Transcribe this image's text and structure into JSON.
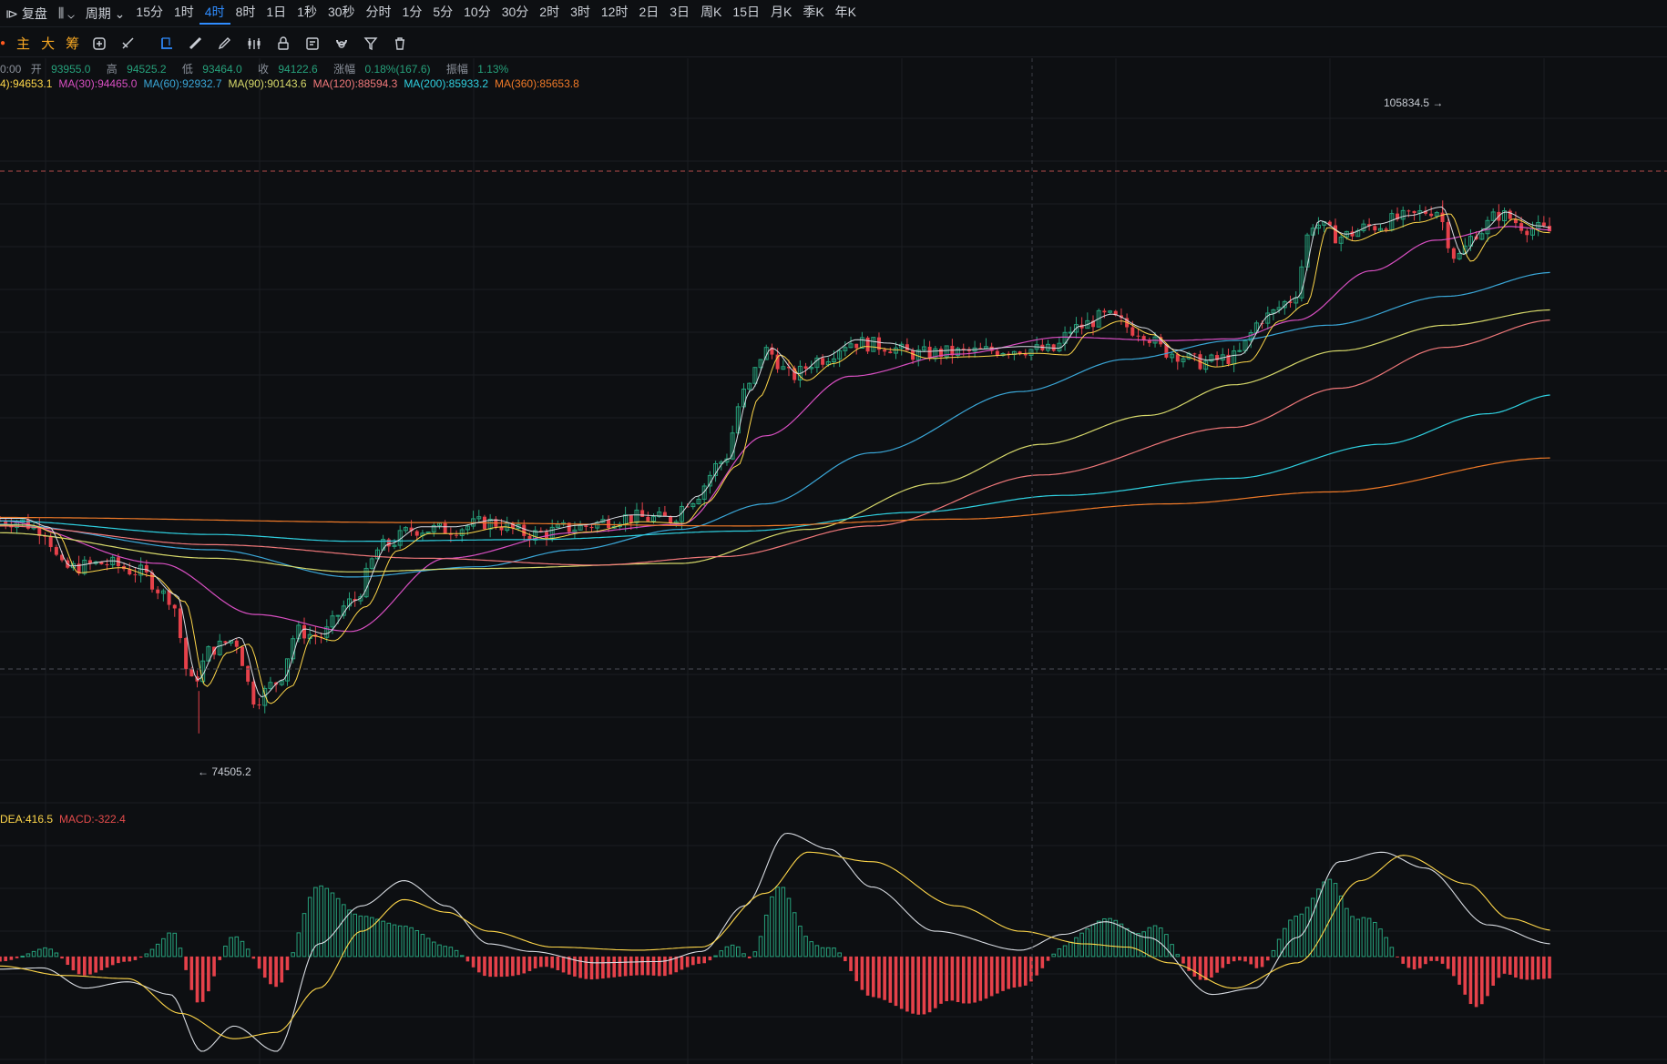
{
  "toolbar": {
    "left_label": "复盘",
    "period_label": "周期",
    "periods": [
      "15分",
      "1时",
      "4时",
      "8时",
      "1日",
      "1秒",
      "30秒",
      "分时",
      "1分",
      "5分",
      "10分",
      "30分",
      "2时",
      "3时",
      "12时",
      "2日",
      "3日",
      "周K",
      "15日",
      "月K",
      "季K",
      "年K"
    ],
    "active_period": "4时"
  },
  "drawbar": {
    "items": [
      "主",
      "大",
      "筹"
    ],
    "tools": [
      "toggle-icon",
      "indicator-icon",
      "cursor-icon",
      "ruler-icon",
      "pen-icon",
      "candles-icon",
      "lock-icon",
      "layout-icon",
      "magnet-icon",
      "filter-icon",
      "trash-icon"
    ]
  },
  "ohlc_line": {
    "time": "0:00",
    "open_label": "开",
    "open": "93955.0",
    "high_label": "高",
    "high": "94525.2",
    "low_label": "低",
    "low": "93464.0",
    "close_label": "收",
    "close": "94122.6",
    "change_label": "涨幅",
    "change": "0.18%(167.6)",
    "amp_label": "振幅",
    "amp": "1.13%"
  },
  "ma_line": [
    {
      "text": "4):94653.1",
      "color": "#ffd74a"
    },
    {
      "text": "MA(30):94465.0",
      "color": "#d84fc2"
    },
    {
      "text": "MA(60):92932.7",
      "color": "#3aa7d8"
    },
    {
      "text": "MA(90):90143.6",
      "color": "#d6d86a"
    },
    {
      "text": "MA(120):88594.3",
      "color": "#f0787a"
    },
    {
      "text": "MA(200):85933.2",
      "color": "#2fd0e0"
    },
    {
      "text": "MA(360):85653.8",
      "color": "#f07a28"
    }
  ],
  "macd_line": [
    {
      "text": "DEA:416.5",
      "color": "#ffd74a"
    },
    {
      "text": "MACD:-322.4",
      "color": "#e34b4b"
    }
  ],
  "annotations": {
    "high": "105834.5",
    "low": "74505.2"
  },
  "colors": {
    "up": "#26a17b",
    "down": "#e5414a",
    "bg": "#0d0f12",
    "grid": "#1a1d22"
  },
  "chart_data": {
    "type": "candlestick",
    "title": "",
    "interval": "4时",
    "ylim": [
      70000,
      112000
    ],
    "price_anchors": [
      [
        15,
        87000
      ],
      [
        40,
        86500
      ],
      [
        60,
        84200
      ],
      [
        100,
        84500
      ],
      [
        130,
        84000
      ],
      [
        160,
        82500
      ],
      [
        180,
        77500
      ],
      [
        200,
        79500
      ],
      [
        220,
        80000
      ],
      [
        240,
        76500
      ],
      [
        260,
        77500
      ],
      [
        280,
        80500
      ],
      [
        300,
        80200
      ],
      [
        330,
        82200
      ],
      [
        360,
        85500
      ],
      [
        390,
        86500
      ],
      [
        420,
        86500
      ],
      [
        460,
        86900
      ],
      [
        500,
        86200
      ],
      [
        540,
        86600
      ],
      [
        590,
        87200
      ],
      [
        630,
        87100
      ],
      [
        650,
        88300
      ],
      [
        680,
        90500
      ],
      [
        700,
        94500
      ],
      [
        720,
        97000
      ],
      [
        745,
        95500
      ],
      [
        770,
        96500
      ],
      [
        800,
        97500
      ],
      [
        830,
        97300
      ],
      [
        860,
        96800
      ],
      [
        900,
        96900
      ],
      [
        960,
        97100
      ],
      [
        990,
        97000
      ],
      [
        1010,
        98300
      ],
      [
        1040,
        99000
      ],
      [
        1070,
        98200
      ],
      [
        1100,
        96900
      ],
      [
        1130,
        96300
      ],
      [
        1160,
        96600
      ],
      [
        1190,
        99000
      ],
      [
        1215,
        100000
      ],
      [
        1235,
        104500
      ],
      [
        1260,
        103700
      ],
      [
        1290,
        104300
      ],
      [
        1320,
        104800
      ],
      [
        1350,
        105300
      ],
      [
        1370,
        102500
      ],
      [
        1390,
        104000
      ],
      [
        1410,
        105000
      ],
      [
        1440,
        104200
      ],
      [
        1460,
        104000
      ]
    ],
    "ma_series": [
      {
        "name": "MA(30)",
        "color": "#d84fc2",
        "points": [
          [
            0,
            87000
          ],
          [
            150,
            84500
          ],
          [
            240,
            81500
          ],
          [
            330,
            80500
          ],
          [
            420,
            84800
          ],
          [
            540,
            86300
          ],
          [
            640,
            86800
          ],
          [
            720,
            92000
          ],
          [
            800,
            95500
          ],
          [
            900,
            96800
          ],
          [
            1000,
            97800
          ],
          [
            1100,
            97600
          ],
          [
            1160,
            97700
          ],
          [
            1220,
            98800
          ],
          [
            1290,
            101700
          ],
          [
            1350,
            103500
          ],
          [
            1420,
            104300
          ],
          [
            1460,
            104100
          ]
        ]
      },
      {
        "name": "MA(60)",
        "color": "#3aa7d8",
        "points": [
          [
            0,
            86800
          ],
          [
            200,
            85300
          ],
          [
            330,
            83700
          ],
          [
            450,
            84300
          ],
          [
            540,
            85300
          ],
          [
            640,
            86500
          ],
          [
            720,
            88000
          ],
          [
            820,
            91000
          ],
          [
            960,
            94600
          ],
          [
            1060,
            96500
          ],
          [
            1160,
            97600
          ],
          [
            1250,
            98500
          ],
          [
            1360,
            100200
          ],
          [
            1460,
            101600
          ]
        ]
      },
      {
        "name": "MA(90)",
        "color": "#d6d86a",
        "points": [
          [
            0,
            86300
          ],
          [
            200,
            84800
          ],
          [
            330,
            84000
          ],
          [
            450,
            84200
          ],
          [
            640,
            84500
          ],
          [
            760,
            86500
          ],
          [
            880,
            89200
          ],
          [
            980,
            91500
          ],
          [
            1080,
            93200
          ],
          [
            1160,
            95000
          ],
          [
            1260,
            97000
          ],
          [
            1360,
            98500
          ],
          [
            1460,
            99400
          ]
        ]
      },
      {
        "name": "MA(120)",
        "color": "#f0787a",
        "points": [
          [
            0,
            86700
          ],
          [
            200,
            85600
          ],
          [
            400,
            84800
          ],
          [
            560,
            84400
          ],
          [
            680,
            84900
          ],
          [
            820,
            86700
          ],
          [
            980,
            89700
          ],
          [
            1160,
            92500
          ],
          [
            1260,
            94800
          ],
          [
            1360,
            97200
          ],
          [
            1460,
            98800
          ]
        ]
      },
      {
        "name": "MA(200)",
        "color": "#2fd0e0",
        "points": [
          [
            0,
            87000
          ],
          [
            200,
            86200
          ],
          [
            330,
            85800
          ],
          [
            500,
            85900
          ],
          [
            700,
            86400
          ],
          [
            860,
            87500
          ],
          [
            1000,
            88500
          ],
          [
            1160,
            89500
          ],
          [
            1300,
            91500
          ],
          [
            1400,
            93300
          ],
          [
            1460,
            94400
          ]
        ]
      },
      {
        "name": "MA(360)",
        "color": "#f07a28",
        "points": [
          [
            0,
            87200
          ],
          [
            400,
            86900
          ],
          [
            700,
            86700
          ],
          [
            900,
            87100
          ],
          [
            1100,
            88000
          ],
          [
            1250,
            88700
          ],
          [
            1460,
            90700
          ]
        ]
      }
    ],
    "macd": {
      "ylim": [
        -1700,
        2100
      ],
      "diff_anchors": [
        [
          0,
          -200
        ],
        [
          40,
          -180
        ],
        [
          80,
          -500
        ],
        [
          120,
          -400
        ],
        [
          160,
          -600
        ],
        [
          190,
          -1500
        ],
        [
          220,
          -1100
        ],
        [
          260,
          -1500
        ],
        [
          300,
          200
        ],
        [
          340,
          800
        ],
        [
          380,
          1200
        ],
        [
          420,
          800
        ],
        [
          460,
          200
        ],
        [
          500,
          80
        ],
        [
          560,
          -100
        ],
        [
          620,
          -80
        ],
        [
          660,
          80
        ],
        [
          700,
          800
        ],
        [
          740,
          1950
        ],
        [
          780,
          1700
        ],
        [
          820,
          1100
        ],
        [
          880,
          400
        ],
        [
          960,
          100
        ],
        [
          1000,
          350
        ],
        [
          1040,
          550
        ],
        [
          1080,
          300
        ],
        [
          1140,
          -600
        ],
        [
          1180,
          -500
        ],
        [
          1220,
          300
        ],
        [
          1260,
          1500
        ],
        [
          1300,
          1650
        ],
        [
          1340,
          1400
        ],
        [
          1400,
          500
        ],
        [
          1460,
          200
        ]
      ],
      "dea_anchors": [
        [
          0,
          -150
        ],
        [
          60,
          -300
        ],
        [
          120,
          -350
        ],
        [
          170,
          -900
        ],
        [
          220,
          -1300
        ],
        [
          260,
          -1200
        ],
        [
          300,
          -500
        ],
        [
          340,
          400
        ],
        [
          380,
          900
        ],
        [
          420,
          700
        ],
        [
          460,
          400
        ],
        [
          520,
          150
        ],
        [
          600,
          100
        ],
        [
          660,
          150
        ],
        [
          720,
          1000
        ],
        [
          760,
          1650
        ],
        [
          820,
          1500
        ],
        [
          900,
          800
        ],
        [
          960,
          400
        ],
        [
          1020,
          200
        ],
        [
          1060,
          150
        ],
        [
          1100,
          -100
        ],
        [
          1160,
          -500
        ],
        [
          1220,
          -100
        ],
        [
          1280,
          1200
        ],
        [
          1320,
          1600
        ],
        [
          1380,
          1150
        ],
        [
          1420,
          600
        ],
        [
          1460,
          416.5
        ]
      ]
    }
  }
}
